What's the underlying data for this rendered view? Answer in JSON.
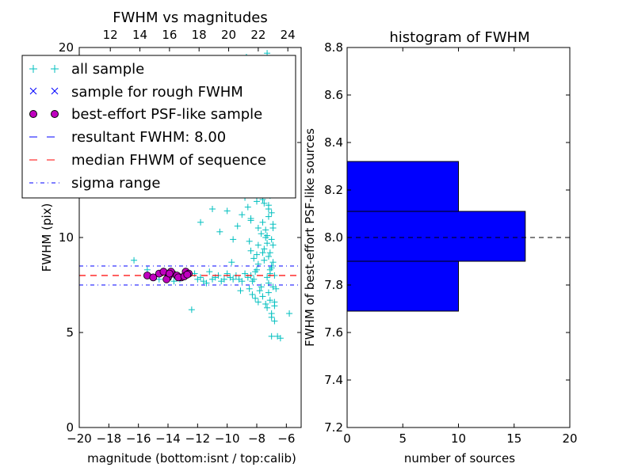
{
  "colors": {
    "all_sample": "#00bfbf",
    "rough_sample": "#0000ff",
    "best_effort_face": "#bf00bf",
    "resultant_line": "#0000ff",
    "median_line": "#ff0000",
    "sigma_line": "#0000ff",
    "hist_fill": "#0000ff",
    "hist_median": "#000000"
  },
  "chart_data": [
    {
      "type": "scatter",
      "title": "FWHM vs magnitudes",
      "xlabel": "magnitude (bottom:isnt / top:calib)",
      "ylabel": "FWHM (pix)",
      "xlim": [
        -20,
        -5
      ],
      "ylim": [
        0,
        20
      ],
      "xticks": [
        -20,
        -18,
        -16,
        -14,
        -12,
        -10,
        -8,
        -6
      ],
      "xtick_labels": [
        "−20",
        "−18",
        "−16",
        "−14",
        "−12",
        "−10",
        "−8",
        "−6"
      ],
      "yticks": [
        0,
        5,
        10,
        15,
        20
      ],
      "ytick_labels": [
        "0",
        "5",
        "10",
        "15",
        "20"
      ],
      "top_axis": {
        "ticks": [
          12,
          14,
          16,
          18,
          20,
          22,
          24
        ],
        "tick_labels": [
          "12",
          "14",
          "16",
          "18",
          "20",
          "22",
          "24"
        ],
        "offset": 29.9
      },
      "legend": {
        "placement": "upper-left",
        "entries": [
          {
            "label": "all sample",
            "marker": "+",
            "color": "#00bfbf"
          },
          {
            "label": "sample for rough FWHM",
            "marker": "x",
            "color": "#0000ff"
          },
          {
            "label": "best-effort PSF-like sample",
            "marker": "o",
            "color": "#bf00bf"
          },
          {
            "label": "resultant FWHM: 8.00",
            "line": "dashed",
            "color": "#0000ff"
          },
          {
            "label": "median FHWM of sequence",
            "line": "dashed",
            "color": "#ff0000"
          },
          {
            "label": "sigma range",
            "line": "dashdot",
            "color": "#0000ff"
          }
        ]
      },
      "hlines": {
        "resultant": 8.0,
        "median": 8.0,
        "sigma_range": [
          7.5,
          8.5
        ]
      },
      "series": [
        {
          "name": "all sample",
          "x": [
            -16.3,
            -15.4,
            -15.0,
            -14.6,
            -14.1,
            -13.6,
            -13.2,
            -12.8,
            -12.4,
            -12.2,
            -12.0,
            -11.8,
            -11.6,
            -11.4,
            -11.2,
            -11.0,
            -10.8,
            -10.6,
            -10.4,
            -10.2,
            -10.0,
            -9.8,
            -9.6,
            -9.4,
            -9.2,
            -9.0,
            -8.8,
            -8.6,
            -8.4,
            -8.2,
            -11.8,
            -11.0,
            -10.5,
            -9.6,
            -9.3,
            -9.1,
            -10.3,
            -10.0,
            -9.7,
            -9.0,
            -8.8,
            -8.7,
            -8.5,
            -8.4,
            -8.2,
            -8.0,
            -7.9,
            -7.8,
            -7.6,
            -7.5,
            -7.3,
            -7.0,
            -6.9,
            -8.7,
            -8.6,
            -8.5,
            -8.3,
            -8.2,
            -8.1,
            -8.0,
            -7.9,
            -7.8,
            -7.7,
            -7.6,
            -7.5,
            -7.4,
            -7.3,
            -7.2,
            -7.1,
            -7.0,
            -8.4,
            -8.2,
            -8.0,
            -7.9,
            -7.7,
            -7.6,
            -7.4,
            -7.3,
            -7.2,
            -7.0,
            -6.9,
            -8.3,
            -8.1,
            -7.9,
            -7.7,
            -7.5,
            -7.3,
            -7.1,
            -7.0,
            -8.5,
            -8.3,
            -8.1,
            -7.9,
            -7.8,
            -7.6,
            -7.4,
            -7.2,
            -7.1,
            -6.8,
            -8.6,
            -8.4,
            -8.0,
            -7.8,
            -7.5,
            -7.2,
            -6.9,
            -8.2,
            -7.9,
            -7.6,
            -7.3,
            -7.0,
            -8.0,
            -7.7,
            -7.4,
            -7.1,
            -6.8,
            -7.8,
            -7.5,
            -7.2,
            -7.6,
            -7.3,
            -7.0,
            -7.5,
            -7.2,
            -6.9,
            -7.4,
            -7.1,
            -7.3,
            -7.0,
            -6.8,
            -7.2,
            -6.9,
            -6.7,
            -7.0,
            -6.8,
            -8.3,
            -8.0,
            -7.7,
            -7.4,
            -7.1,
            -6.9,
            -6.6,
            -7.1,
            -6.8,
            -5.8,
            -7.0,
            -6.6,
            -6.4
          ],
          "y": [
            8.8,
            8.3,
            7.9,
            7.8,
            8.1,
            7.7,
            7.8,
            8.0,
            6.2,
            8.1,
            7.8,
            7.9,
            7.7,
            7.6,
            8.2,
            7.8,
            7.9,
            8.0,
            7.7,
            7.8,
            8.1,
            7.9,
            7.8,
            8.0,
            7.8,
            7.7,
            8.1,
            7.9,
            8.0,
            7.8,
            10.8,
            11.5,
            10.3,
            9.9,
            10.6,
            7.2,
            12.3,
            11.4,
            8.7,
            11.2,
            12.1,
            13.2,
            9.8,
            11.0,
            12.6,
            8.3,
            10.5,
            12.8,
            9.2,
            11.8,
            10.1,
            8.4,
            9.6,
            19.5,
            18.9,
            17.8,
            16.9,
            15.4,
            14.7,
            13.8,
            14.2,
            13.1,
            12.5,
            12.0,
            13.5,
            12.9,
            12.3,
            11.7,
            12.2,
            11.3,
            9.3,
            8.9,
            9.1,
            9.6,
            10.2,
            10.8,
            10.4,
            9.7,
            11.1,
            9.9,
            10.5,
            7.7,
            8.2,
            8.6,
            7.4,
            8.8,
            7.9,
            8.1,
            8.5,
            7.3,
            7.0,
            6.8,
            6.6,
            7.2,
            6.9,
            6.5,
            7.1,
            6.7,
            6.4,
            11.6,
            10.9,
            11.9,
            12.4,
            12.7,
            11.5,
            10.7,
            14.4,
            15.0,
            14.1,
            14.8,
            13.9,
            15.7,
            16.2,
            15.9,
            16.6,
            15.3,
            17.2,
            17.8,
            18.3,
            19.0,
            19.7,
            18.6,
            9.4,
            9.0,
            8.7,
            10.0,
            9.2,
            6.3,
            6.0,
            6.6,
            7.6,
            7.4,
            7.3,
            5.8,
            5.6,
            16.4,
            17.5,
            18.0,
            19.3,
            17.0,
            16.0,
            13.3,
            8.3,
            8.0,
            6.0,
            4.8,
            4.8,
            4.7
          ]
        },
        {
          "name": "best-effort PSF-like sample",
          "x": [
            -15.4,
            -15.0,
            -14.6,
            -14.3,
            -14.0,
            -13.7,
            -13.4,
            -13.1,
            -12.8,
            -12.6,
            -14.1,
            -13.8,
            -13.3,
            -12.9,
            -12.7,
            -13.9
          ],
          "y": [
            8.0,
            7.9,
            8.1,
            8.2,
            7.9,
            8.1,
            8.0,
            7.9,
            8.2,
            8.1,
            7.8,
            8.2,
            7.9,
            7.95,
            8.05,
            8.1
          ]
        }
      ]
    },
    {
      "type": "bar",
      "orientation": "horizontal",
      "title": "histogram of FWHM",
      "xlabel": "number of sources",
      "ylabel": "FWHM of best-effort PSF-like sources",
      "xlim": [
        0,
        20
      ],
      "ylim": [
        7.2,
        8.8
      ],
      "xticks": [
        0,
        5,
        10,
        15,
        20
      ],
      "xtick_labels": [
        "0",
        "5",
        "10",
        "15",
        "20"
      ],
      "yticks": [
        7.2,
        7.4,
        7.6,
        7.8,
        8.0,
        8.2,
        8.4,
        8.6,
        8.8
      ],
      "ytick_labels": [
        "7.2",
        "7.4",
        "7.6",
        "7.8",
        "8.0",
        "8.2",
        "8.4",
        "8.6",
        "8.8"
      ],
      "bins": [
        {
          "low": 7.69,
          "high": 7.9,
          "count": 10
        },
        {
          "low": 7.9,
          "high": 8.11,
          "count": 16
        },
        {
          "low": 8.11,
          "high": 8.32,
          "count": 10
        }
      ],
      "median_line": 8.0
    }
  ]
}
